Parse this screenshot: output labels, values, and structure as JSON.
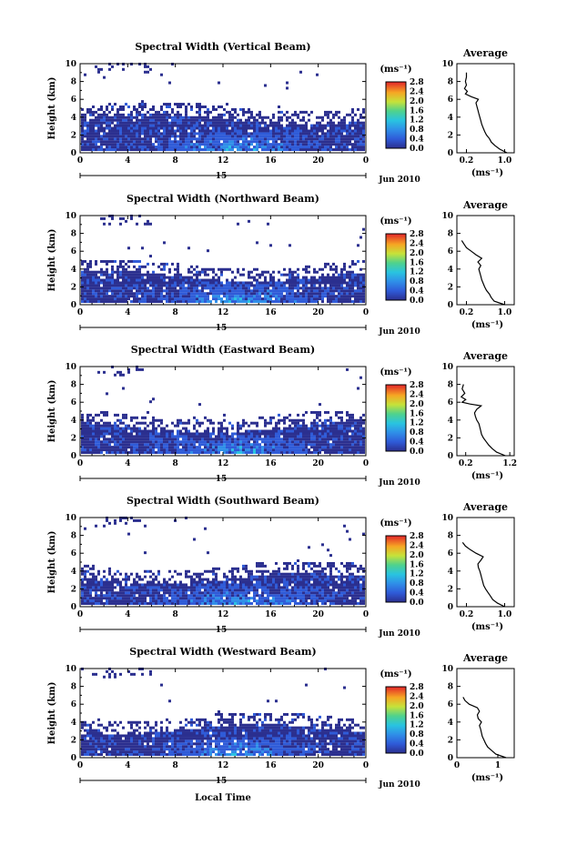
{
  "figure": {
    "bottom_label": "Local Time",
    "units_label": "(ms⁻¹)",
    "avg_title": "Average",
    "y_label": "Height (km)"
  },
  "chart_data": [
    {
      "type": "heatmap",
      "title": "Spectral Width (Vertical Beam)",
      "xlabel": "Local Time",
      "ylabel": "Height (km)",
      "x_ticks": [
        "0",
        "4",
        "8",
        "12",
        "16",
        "20",
        "0"
      ],
      "xlim": [
        0,
        24
      ],
      "y_ticks": [
        "0",
        "2",
        "4",
        "6",
        "8",
        "10"
      ],
      "ylim": [
        0,
        10
      ],
      "date_day": "15",
      "date_month": "Jun 2010",
      "colorbar": {
        "label": "(ms⁻¹)",
        "ticks": [
          "0.0",
          "0.4",
          "0.8",
          "1.2",
          "1.6",
          "2.0",
          "2.4",
          "2.8"
        ],
        "range": [
          0,
          2.8
        ]
      },
      "average_profile": {
        "title": "Average",
        "xlabel": "(ms⁻¹)",
        "x_ticks": [
          "0.2",
          "1.0"
        ],
        "x_tick_values": [
          0.2,
          1.0
        ],
        "xlim": [
          0,
          1.2
        ],
        "y_ticks": [
          "0",
          "2",
          "4",
          "6",
          "8",
          "10"
        ],
        "height_km": [
          0.0,
          0.4,
          0.8,
          1.2,
          1.6,
          2.0,
          2.4,
          2.8,
          3.2,
          3.6,
          4.0,
          4.4,
          4.8,
          5.2,
          5.6,
          6.0,
          6.3,
          6.6,
          6.9,
          7.2,
          7.6,
          8.0,
          8.5,
          9.0
        ],
        "width_ms": [
          1.05,
          0.9,
          0.8,
          0.72,
          0.68,
          0.62,
          0.58,
          0.55,
          0.52,
          0.5,
          0.48,
          0.46,
          0.44,
          0.42,
          0.4,
          0.45,
          0.3,
          0.18,
          0.22,
          0.16,
          0.2,
          0.18,
          0.2,
          0.2
        ]
      }
    },
    {
      "type": "heatmap",
      "title": "Spectral Width (Northward Beam)",
      "xlabel": "Local Time",
      "ylabel": "Height (km)",
      "x_ticks": [
        "0",
        "4",
        "8",
        "12",
        "16",
        "20",
        "0"
      ],
      "xlim": [
        0,
        24
      ],
      "y_ticks": [
        "0",
        "2",
        "4",
        "6",
        "8",
        "10"
      ],
      "ylim": [
        0,
        10
      ],
      "date_day": "15",
      "date_month": "Jun 2010",
      "colorbar": {
        "label": "(ms⁻¹)",
        "ticks": [
          "0.0",
          "0.4",
          "0.8",
          "1.2",
          "1.6",
          "2.0",
          "2.4",
          "2.8"
        ],
        "range": [
          0,
          2.8
        ]
      },
      "average_profile": {
        "title": "Average",
        "xlabel": "(ms⁻¹)",
        "x_ticks": [
          "0.2",
          "1.0"
        ],
        "x_tick_values": [
          0.2,
          1.0
        ],
        "xlim": [
          0,
          1.2
        ],
        "y_ticks": [
          "0",
          "2",
          "4",
          "6",
          "8",
          "10"
        ],
        "height_km": [
          0.0,
          0.4,
          0.8,
          1.2,
          1.6,
          2.0,
          2.4,
          2.8,
          3.2,
          3.6,
          4.0,
          4.4,
          4.8,
          5.2,
          5.6,
          6.0,
          6.4,
          6.8,
          7.2
        ],
        "width_ms": [
          1.0,
          0.78,
          0.72,
          0.68,
          0.62,
          0.58,
          0.55,
          0.52,
          0.5,
          0.48,
          0.46,
          0.5,
          0.44,
          0.52,
          0.4,
          0.3,
          0.2,
          0.15,
          0.1
        ]
      }
    },
    {
      "type": "heatmap",
      "title": "Spectral Width (Eastward Beam)",
      "xlabel": "Local Time",
      "ylabel": "Height (km)",
      "x_ticks": [
        "0",
        "4",
        "8",
        "12",
        "16",
        "20",
        "0"
      ],
      "xlim": [
        0,
        24
      ],
      "y_ticks": [
        "0",
        "2",
        "4",
        "6",
        "8",
        "10"
      ],
      "ylim": [
        0,
        10
      ],
      "date_day": "15",
      "date_month": "Jun 2010",
      "colorbar": {
        "label": "(ms⁻¹)",
        "ticks": [
          "0.0",
          "0.4",
          "0.8",
          "1.2",
          "1.6",
          "2.0",
          "2.4",
          "2.8"
        ],
        "range": [
          0,
          2.8
        ]
      },
      "average_profile": {
        "title": "Average",
        "xlabel": "(ms⁻¹)",
        "x_ticks": [
          "0.2",
          "1.2"
        ],
        "x_tick_values": [
          0.2,
          1.2
        ],
        "xlim": [
          0,
          1.3
        ],
        "y_ticks": [
          "0",
          "2",
          "4",
          "6",
          "8",
          "10"
        ],
        "height_km": [
          0.0,
          0.4,
          0.8,
          1.2,
          1.6,
          2.0,
          2.4,
          2.8,
          3.2,
          3.6,
          4.0,
          4.4,
          4.8,
          5.2,
          5.6,
          5.8,
          6.0,
          6.3,
          6.6,
          7.0,
          7.5,
          8.0
        ],
        "width_ms": [
          1.1,
          0.9,
          0.8,
          0.72,
          0.66,
          0.6,
          0.56,
          0.54,
          0.52,
          0.5,
          0.45,
          0.42,
          0.4,
          0.45,
          0.55,
          0.3,
          0.12,
          0.2,
          0.1,
          0.18,
          0.12,
          0.15
        ]
      }
    },
    {
      "type": "heatmap",
      "title": "Spectral Width (Southward Beam)",
      "xlabel": "Local Time",
      "ylabel": "Height (km)",
      "x_ticks": [
        "0",
        "4",
        "8",
        "12",
        "16",
        "20",
        "0"
      ],
      "xlim": [
        0,
        24
      ],
      "y_ticks": [
        "0",
        "2",
        "4",
        "6",
        "8",
        "10"
      ],
      "ylim": [
        0,
        10
      ],
      "date_day": "15",
      "date_month": "Jun 2010",
      "colorbar": {
        "label": "(ms⁻¹)",
        "ticks": [
          "0.0",
          "0.4",
          "0.8",
          "1.2",
          "1.6",
          "2.0",
          "2.4",
          "2.8"
        ],
        "range": [
          0,
          2.8
        ]
      },
      "average_profile": {
        "title": "Average",
        "xlabel": "(ms⁻¹)",
        "x_ticks": [
          "0.2",
          "1.0"
        ],
        "x_tick_values": [
          0.2,
          1.0
        ],
        "xlim": [
          0,
          1.2
        ],
        "y_ticks": [
          "0",
          "2",
          "4",
          "6",
          "8",
          "10"
        ],
        "height_km": [
          0.0,
          0.4,
          0.8,
          1.2,
          1.6,
          2.0,
          2.4,
          2.8,
          3.2,
          3.6,
          4.0,
          4.4,
          4.8,
          5.2,
          5.6,
          6.0,
          6.4,
          6.8,
          7.2
        ],
        "width_ms": [
          1.0,
          0.85,
          0.75,
          0.7,
          0.65,
          0.6,
          0.56,
          0.54,
          0.52,
          0.5,
          0.48,
          0.45,
          0.44,
          0.5,
          0.55,
          0.4,
          0.28,
          0.18,
          0.12
        ]
      }
    },
    {
      "type": "heatmap",
      "title": "Spectral Width (Westward Beam)",
      "xlabel": "Local Time",
      "ylabel": "Height (km)",
      "x_ticks": [
        "0",
        "4",
        "8",
        "12",
        "16",
        "20",
        "0"
      ],
      "xlim": [
        0,
        24
      ],
      "y_ticks": [
        "0",
        "2",
        "4",
        "6",
        "8",
        "10"
      ],
      "ylim": [
        0,
        10
      ],
      "date_day": "15",
      "date_month": "Jun 2010",
      "colorbar": {
        "label": "(ms⁻¹)",
        "ticks": [
          "0.0",
          "0.4",
          "0.8",
          "1.2",
          "1.6",
          "2.0",
          "2.4",
          "2.8"
        ],
        "range": [
          0,
          2.8
        ]
      },
      "average_profile": {
        "title": "Average",
        "xlabel": "(ms⁻¹)",
        "x_ticks": [
          "0",
          "1"
        ],
        "x_tick_values": [
          0,
          1
        ],
        "xlim": [
          0,
          1.4
        ],
        "y_ticks": [
          "0",
          "2",
          "4",
          "6",
          "8",
          "10"
        ],
        "height_km": [
          0.0,
          0.4,
          0.8,
          1.2,
          1.6,
          2.0,
          2.4,
          2.8,
          3.2,
          3.6,
          4.0,
          4.4,
          4.8,
          5.2,
          5.6,
          6.0,
          6.4,
          6.8
        ],
        "width_ms": [
          1.2,
          0.95,
          0.85,
          0.75,
          0.7,
          0.66,
          0.62,
          0.6,
          0.58,
          0.55,
          0.6,
          0.52,
          0.5,
          0.55,
          0.5,
          0.3,
          0.2,
          0.15
        ]
      }
    }
  ]
}
